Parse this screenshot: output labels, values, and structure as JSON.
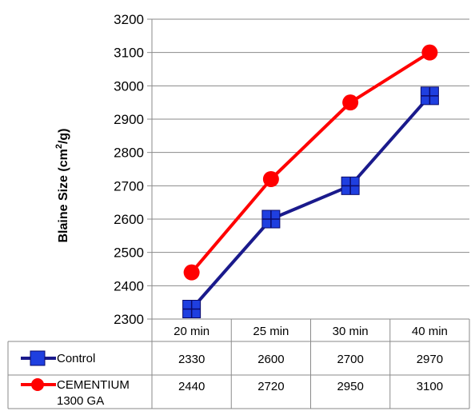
{
  "chart_data": {
    "type": "line",
    "ylabel_main": "Blaine Size (cm",
    "ylabel_sup": "2",
    "ylabel_tail": "/g)",
    "ylim": [
      2300,
      3200
    ],
    "yticks": [
      2300,
      2400,
      2500,
      2600,
      2700,
      2800,
      2900,
      3000,
      3100,
      3200
    ],
    "categories": [
      "20 min",
      "25 min",
      "30 min",
      "40 min"
    ],
    "grid": true,
    "legend_placement": "data-table",
    "series": [
      {
        "name": "Control",
        "name_lines": [
          "Control"
        ],
        "values": [
          2330,
          2600,
          2700,
          2970
        ],
        "color": "#1a1a8c",
        "marker": "square",
        "marker_color": "#1f3fe0"
      },
      {
        "name": "CEMENTIUM 1300 GA",
        "name_lines": [
          "CEMENTIUM",
          "1300 GA"
        ],
        "values": [
          2440,
          2720,
          2950,
          3100
        ],
        "color": "#ff0000",
        "marker": "circle",
        "marker_color": "#ff0000"
      }
    ]
  }
}
